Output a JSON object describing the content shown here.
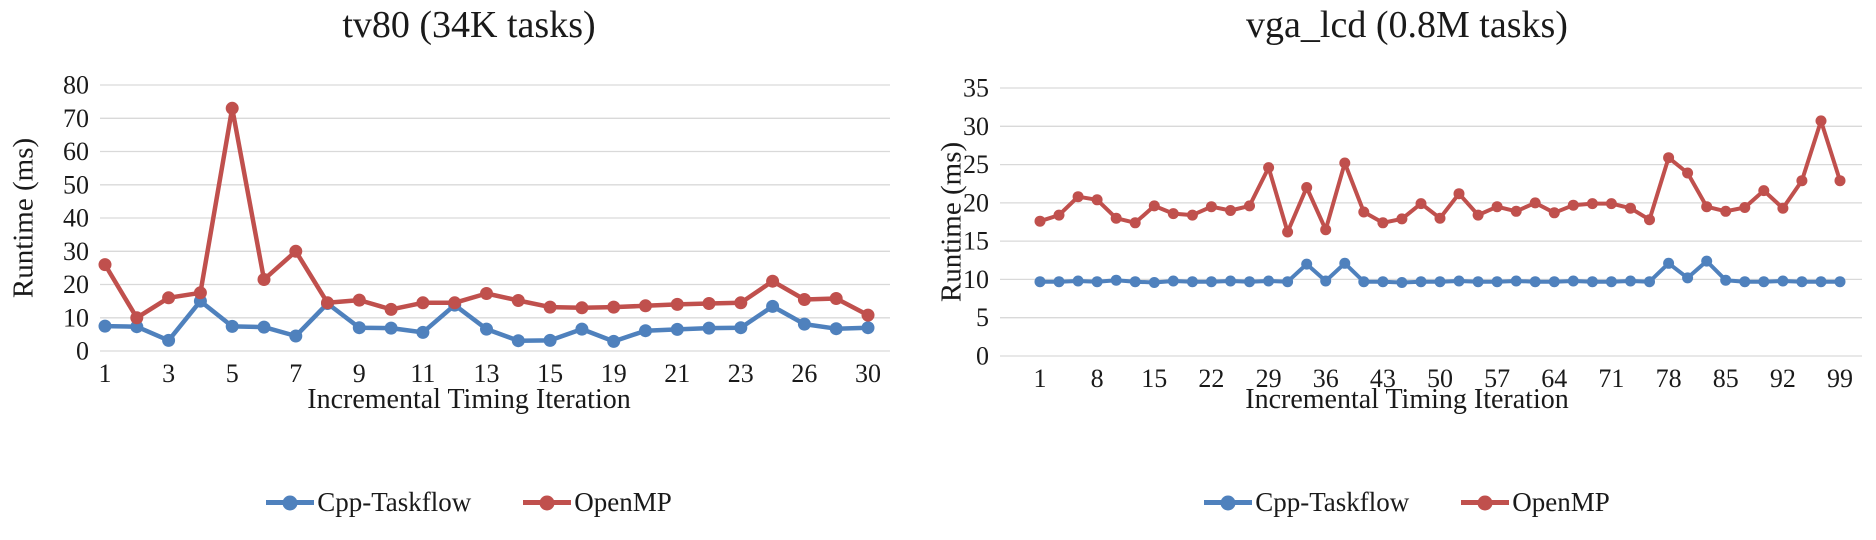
{
  "colors": {
    "background": "#FFFFFF",
    "grid": "#D9D9D9",
    "text": "#1A1A1A",
    "cpp_taskflow": "#4F81BD",
    "openmp": "#C0504D"
  },
  "chart_data": [
    {
      "type": "line",
      "title": "tv80 (34K tasks)",
      "xlabel": "Incremental Timing Iteration",
      "ylabel": "Runtime (ms)",
      "ylim": [
        0,
        80
      ],
      "y_ticks": [
        0,
        10,
        20,
        30,
        40,
        50,
        60,
        70,
        80
      ],
      "x_tick_labels": [
        "1",
        "3",
        "5",
        "7",
        "9",
        "11",
        "13",
        "15",
        "19",
        "21",
        "23",
        "26",
        "30"
      ],
      "x_tick_every": 2,
      "grid": "horizontal",
      "legend_position": "bottom",
      "series": [
        {
          "name": "Cpp-Taskflow",
          "color": "#4F81BD",
          "values": [
            7.5,
            7.3,
            3.2,
            15,
            7.4,
            7.2,
            4.5,
            14.3,
            7,
            6.9,
            5.6,
            13.8,
            6.6,
            3.1,
            3.2,
            6.6,
            2.9,
            6.1,
            6.5,
            6.9,
            7,
            13.4,
            8.1,
            6.7,
            7
          ]
        },
        {
          "name": "OpenMP",
          "color": "#C0504D",
          "values": [
            26,
            10,
            16,
            17.5,
            73,
            21.5,
            30,
            14.5,
            15.3,
            12.5,
            14.5,
            14.5,
            17.3,
            15.2,
            13.2,
            13,
            13.2,
            13.6,
            14,
            14.3,
            14.5,
            21,
            15.5,
            15.8,
            10.8
          ]
        }
      ]
    },
    {
      "type": "line",
      "title": "vga_lcd (0.8M tasks)",
      "xlabel": "Incremental Timing Iteration",
      "ylabel": "Runtime (ms)",
      "ylim": [
        0,
        35
      ],
      "y_ticks": [
        0,
        5,
        10,
        15,
        20,
        25,
        30,
        35
      ],
      "x_tick_labels": [
        "1",
        "8",
        "15",
        "22",
        "29",
        "36",
        "43",
        "50",
        "57",
        "64",
        "71",
        "78",
        "85",
        "92",
        "99"
      ],
      "x_tick_every": 3,
      "grid": "horizontal",
      "legend_position": "bottom",
      "series": [
        {
          "name": "Cpp-Taskflow",
          "color": "#4F81BD",
          "values": [
            9.7,
            9.7,
            9.8,
            9.7,
            9.9,
            9.7,
            9.6,
            9.8,
            9.7,
            9.7,
            9.8,
            9.7,
            9.8,
            9.7,
            12,
            9.8,
            12.1,
            9.7,
            9.7,
            9.6,
            9.7,
            9.7,
            9.8,
            9.7,
            9.7,
            9.8,
            9.7,
            9.7,
            9.8,
            9.7,
            9.7,
            9.8,
            9.7,
            12.1,
            10.2,
            12.4,
            9.9,
            9.7,
            9.7,
            9.8,
            9.7,
            9.7,
            9.7
          ]
        },
        {
          "name": "OpenMP",
          "color": "#C0504D",
          "values": [
            17.6,
            18.4,
            20.8,
            20.4,
            18,
            17.4,
            19.6,
            18.6,
            18.4,
            19.5,
            19,
            19.6,
            24.6,
            16.2,
            22,
            16.5,
            25.2,
            18.8,
            17.4,
            17.9,
            19.9,
            18,
            21.2,
            18.4,
            19.5,
            18.9,
            20,
            18.7,
            19.7,
            19.9,
            19.9,
            19.3,
            17.8,
            25.9,
            23.9,
            19.5,
            18.9,
            19.4,
            21.6,
            19.3,
            22.9,
            30.7,
            22.9
          ]
        }
      ]
    }
  ]
}
